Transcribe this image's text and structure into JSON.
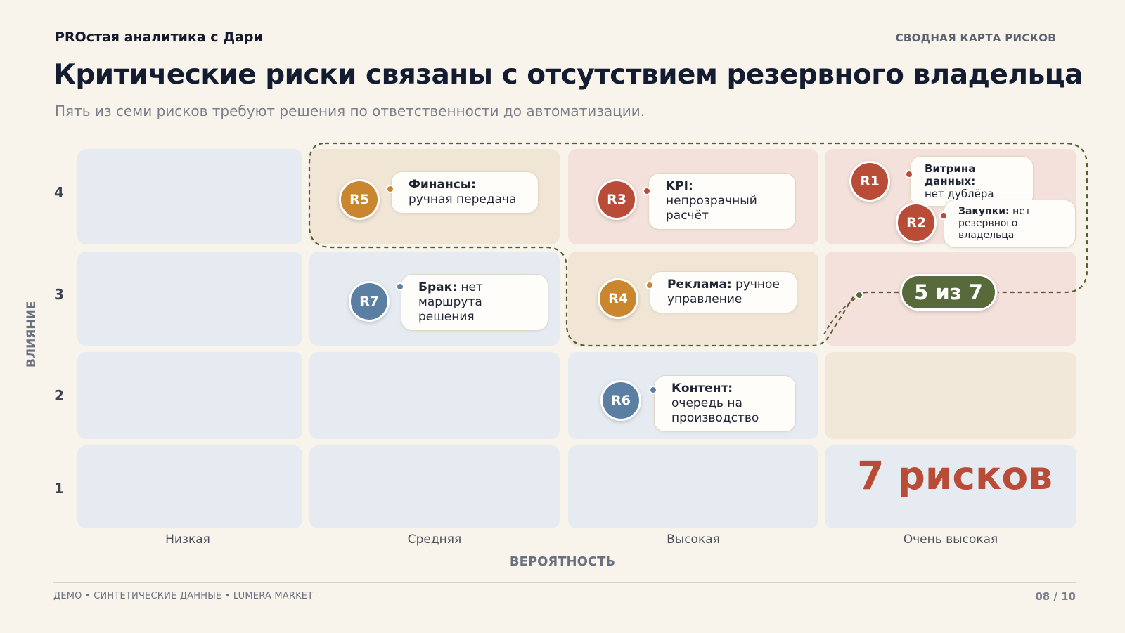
{
  "header": {
    "brand": "PROстая аналитика с Дари",
    "section": "СВОДНАЯ КАРТА РИСКОВ",
    "title": "Критические риски связаны с отсутствием резервного владельца",
    "subtitle": "Пять из семи рисков требуют решения по ответственности до автоматизации."
  },
  "matrix": {
    "y_label": "ВЛИЯНИЕ",
    "x_label": "ВЕРОЯТНОСТЬ",
    "y_ticks": [
      "4",
      "3",
      "2",
      "1"
    ],
    "x_ticks": [
      "Низкая",
      "Средняя",
      "Высокая",
      "Очень высокая"
    ]
  },
  "risks": [
    {
      "id": "R1",
      "bold": "Витрина данных:",
      "rest": "нет дублёра",
      "impact": 4,
      "probability": "Очень высокая",
      "color": "#b84c36"
    },
    {
      "id": "R2",
      "bold": "Закупки:",
      "rest": "нет резервного владельца",
      "impact": 4,
      "probability": "Очень высокая",
      "color": "#b84c36"
    },
    {
      "id": "R3",
      "bold": "KPI:",
      "rest": "непрозрачный расчёт",
      "impact": 4,
      "probability": "Высокая",
      "color": "#b84c36"
    },
    {
      "id": "R4",
      "bold": "Реклама:",
      "rest": "ручное управление",
      "impact": 3,
      "probability": "Высокая",
      "color": "#c9862f"
    },
    {
      "id": "R5",
      "bold": "Финансы:",
      "rest": "ручная передача",
      "impact": 4,
      "probability": "Средняя",
      "color": "#c9862f"
    },
    {
      "id": "R6",
      "bold": "Контент:",
      "rest": "очередь на производство",
      "impact": 2,
      "probability": "Высокая",
      "color": "#5b7fa3"
    },
    {
      "id": "R7",
      "bold": "Брак:",
      "rest": "нет маршрута решения",
      "impact": 3,
      "probability": "Средняя",
      "color": "#5b7fa3"
    }
  ],
  "highlight": {
    "pill": "5 из 7",
    "total": "7 рисков"
  },
  "footer": {
    "left": "ДЕМО • СИНТЕТИЧЕСКИЕ ДАННЫЕ • LUMERA MARKET",
    "page": "08 / 10"
  },
  "colors": {
    "background": "#f8f4ec",
    "critical": "#b84c36",
    "medium": "#c9862f",
    "low": "#5b7fa3",
    "highlight": "#58693a"
  }
}
